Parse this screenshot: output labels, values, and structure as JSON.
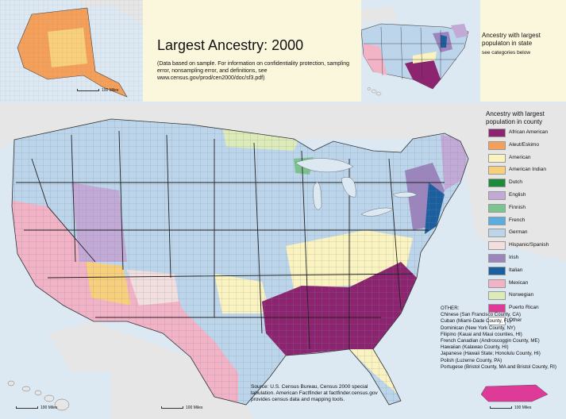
{
  "title": "Largest Ancestry: 2000",
  "subtitle": "(Data based on sample. For information on confidentiality protection, sampling error, nonsampling error, and definitions, see www.census.gov/prod/cen2000/doc/sf3.pdf)",
  "state_legend": {
    "title": "Ancestry with largest populaton in state",
    "note": "see categories below"
  },
  "county_legend": {
    "title": "Ancestry with largest population in county",
    "items": [
      {
        "label": "African American",
        "color": "#8c2470"
      },
      {
        "label": "Aleut/Eskimo",
        "color": "#f4a05a"
      },
      {
        "label": "American",
        "color": "#fbf3bf"
      },
      {
        "label": "American Indian",
        "color": "#f8cf7a"
      },
      {
        "label": "Dutch",
        "color": "#1c8a3a"
      },
      {
        "label": "English",
        "color": "#c3a9d6"
      },
      {
        "label": "Finnish",
        "color": "#7cc48e"
      },
      {
        "label": "French",
        "color": "#5aaedf"
      },
      {
        "label": "German",
        "color": "#bcd5ea"
      },
      {
        "label": "Hispanic/Spanish",
        "color": "#f3dede"
      },
      {
        "label": "Irish",
        "color": "#9c84bd"
      },
      {
        "label": "Italian",
        "color": "#1c5f9e"
      },
      {
        "label": "Mexican",
        "color": "#f2b3c6"
      },
      {
        "label": "Norwegian",
        "color": "#dcebb8"
      },
      {
        "label": "Puerto Rican",
        "color": "#de3a98"
      },
      {
        "label": "Other",
        "color": "#ffffff"
      }
    ]
  },
  "other": {
    "heading": "OTHER:",
    "lines": [
      "Chinese (San Francisco County, CA)",
      "Cuban (Miami-Dade County, FL)",
      "Dominican (New York County, NY)",
      "Filipino (Kauai and Maui counties, HI)",
      "French Canadian (Androscoggin County, ME)",
      "Hawaiian (Kalawao County, HI)",
      "Japanese (Hawaii State; Honolulu County, HI)",
      "Polish (Luzerne County, PA)",
      "Portugese (Bristol County, MA and Bristol County, RI)"
    ]
  },
  "source": "Source: U.S. Census Bureau, Census 2000 special tabulation. American Factfinder at factfinder.census.gov provides census data and mapping tools.",
  "scales": {
    "alaska": "100 Miles",
    "hawaii": "100 Miles",
    "conus": "100 Miles",
    "puerto_rico": "100 Miles"
  },
  "colors": {
    "water": "#dce8f2",
    "land_foreign": "#e6e6e6",
    "panel": "#fbf7dc",
    "state_border": "#222222",
    "county_border": "#6f7f8f"
  }
}
